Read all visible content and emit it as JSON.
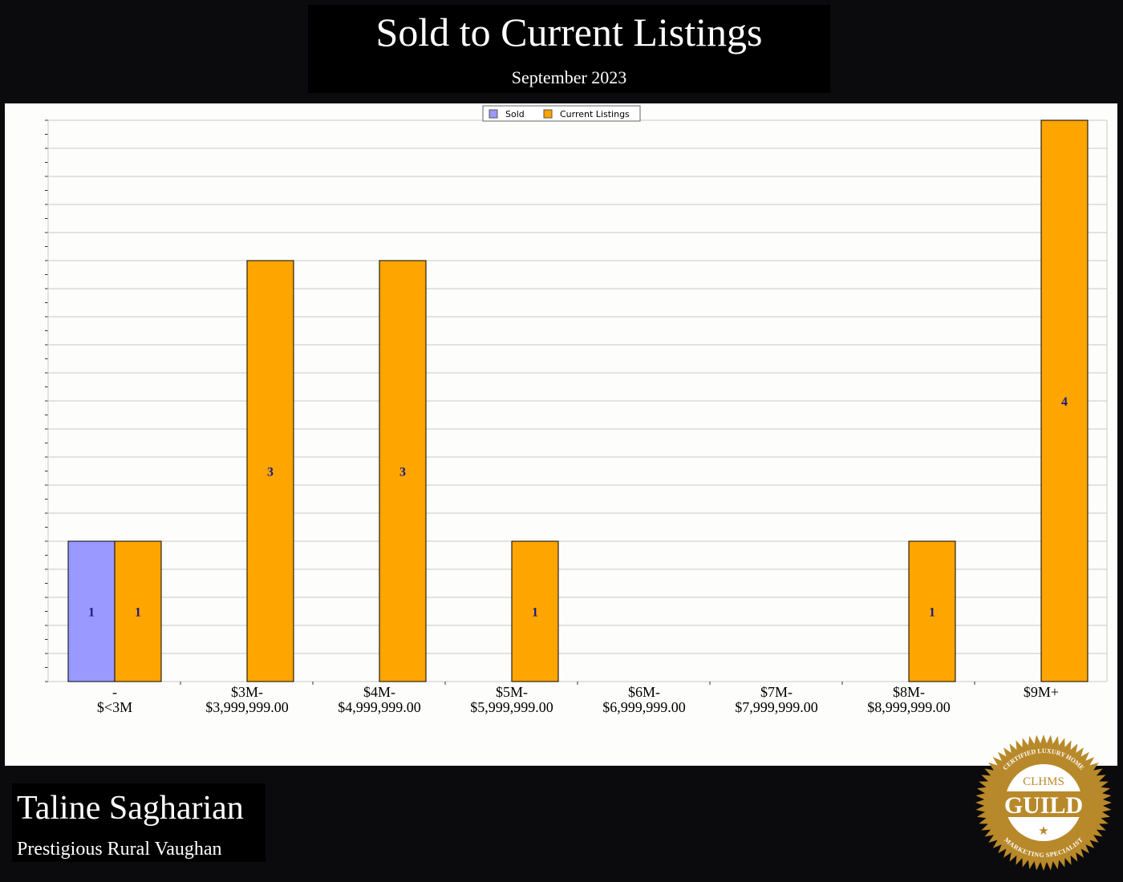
{
  "header": {
    "title": "Sold to Current Listings",
    "subtitle": "September 2023"
  },
  "footer": {
    "agent_name": "Taline Sagharian",
    "area": "Prestigious Rural Vaughan",
    "badge": {
      "top_text": "CERTIFIED LUXURY HOME",
      "mid_text": "CLHMS",
      "main_text": "GUILD",
      "bottom_text": "MARKETING SPECIALIST"
    }
  },
  "colors": {
    "sold": "#9999ff",
    "current": "#ffa500",
    "label": "#1a1a80",
    "badge_gold": "#b8892a"
  },
  "chart_data": {
    "type": "bar",
    "categories": [
      [
        "-",
        "$<3M"
      ],
      [
        "$3M-",
        "$3,999,999.00"
      ],
      [
        "$4M-",
        "$4,999,999.00"
      ],
      [
        "$5M-",
        "$5,999,999.00"
      ],
      [
        "$6M-",
        "$6,999,999.00"
      ],
      [
        "$7M-",
        "$7,999,999.00"
      ],
      [
        "$8M-",
        "$8,999,999.00"
      ],
      [
        "$9M+"
      ]
    ],
    "series": [
      {
        "name": "Sold",
        "values": [
          1,
          0,
          0,
          0,
          0,
          0,
          0,
          0
        ]
      },
      {
        "name": "Current Listings",
        "values": [
          1,
          3,
          3,
          1,
          0,
          0,
          1,
          4
        ]
      }
    ],
    "ylim": [
      0,
      4
    ],
    "y_grid_step": 0.2,
    "grid": true,
    "legend": "top-center",
    "data_labels": true
  }
}
